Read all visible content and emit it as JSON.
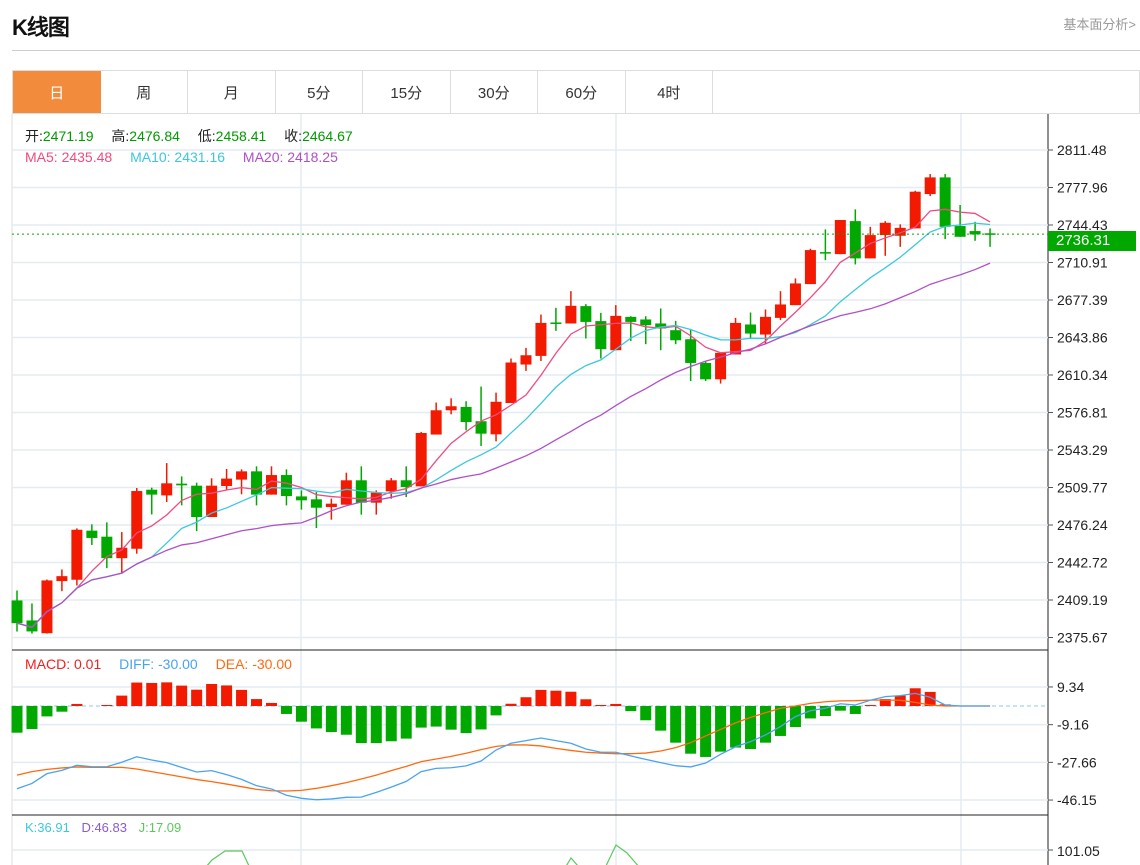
{
  "header": {
    "title": "K线图",
    "fundamental_link": "基本面分析>"
  },
  "tabs": [
    {
      "label": "日",
      "active": true
    },
    {
      "label": "周"
    },
    {
      "label": "月"
    },
    {
      "label": "5分"
    },
    {
      "label": "15分"
    },
    {
      "label": "30分"
    },
    {
      "label": "60分"
    },
    {
      "label": "4时"
    }
  ],
  "ohlc_legend": {
    "open_label": "开:",
    "open": "2471.19",
    "high_label": "高:",
    "high": "2476.84",
    "low_label": "低:",
    "low": "2458.41",
    "close_label": "收:",
    "close": "2464.67"
  },
  "ma_legend": {
    "ma5": "MA5: 2435.48",
    "ma10": "MA10: 2431.16",
    "ma20": "MA20: 2418.25"
  },
  "macd_legend": {
    "macd": "MACD: 0.01",
    "diff": "DIFF: -30.00",
    "dea": "DEA: -30.00"
  },
  "kdj_legend": {
    "k": "K:36.91",
    "d": "D:46.83",
    "j": "J:17.09"
  },
  "current_price": "2736.31",
  "colors": {
    "up": "#f21a00",
    "down": "#00a800",
    "ma5": "#ee4b82",
    "ma10": "#3cc8dc",
    "ma20": "#b050c8",
    "diff": "#4aa3f0",
    "dea": "#ff6a10",
    "accent": "#f28c3c"
  },
  "chart_data": [
    {
      "type": "candlestick",
      "ylim": [
        2375.67,
        2811.48
      ],
      "y_ticks": [
        "2811.48",
        "2777.96",
        "2744.43",
        "2710.91",
        "2677.39",
        "2643.86",
        "2610.34",
        "2576.81",
        "2543.29",
        "2509.77",
        "2476.24",
        "2442.72",
        "2409.19",
        "2375.67"
      ],
      "grid": true,
      "series_ma": [
        "MA5",
        "MA10",
        "MA20"
      ],
      "ohlc": [
        [
          2408.8,
          2417.7,
          2381.0,
          2388.5
        ],
        [
          2390.9,
          2406.1,
          2379.2,
          2381.1
        ],
        [
          2379.5,
          2427.5,
          2379.2,
          2426.7
        ],
        [
          2426.1,
          2436.5,
          2417.1,
          2430.5
        ],
        [
          2427.3,
          2473.2,
          2422.2,
          2472.0
        ],
        [
          2471.19,
          2476.84,
          2458.41,
          2464.67
        ],
        [
          2465.8,
          2478.6,
          2437.7,
          2446.6
        ],
        [
          2446.6,
          2469.9,
          2432.7,
          2455.9
        ],
        [
          2455.0,
          2509.3,
          2450.6,
          2506.6
        ],
        [
          2507.8,
          2509.6,
          2485.7,
          2503.4
        ],
        [
          2502.7,
          2531.6,
          2496.8,
          2513.5
        ],
        [
          2513.2,
          2519.7,
          2493.8,
          2511.7
        ],
        [
          2511.4,
          2514.1,
          2470.8,
          2483.4
        ],
        [
          2483.4,
          2518.0,
          2483.4,
          2511.4
        ],
        [
          2511.1,
          2526.3,
          2507.8,
          2517.7
        ],
        [
          2516.8,
          2526.0,
          2503.7,
          2524.2
        ],
        [
          2524.2,
          2528.7,
          2493.8,
          2503.4
        ],
        [
          2503.4,
          2528.7,
          2503.4,
          2520.9
        ],
        [
          2520.9,
          2526.0,
          2493.8,
          2502.1
        ],
        [
          2501.8,
          2507.2,
          2490.0,
          2498.3
        ],
        [
          2499.2,
          2505.7,
          2473.5,
          2491.7
        ],
        [
          2492.3,
          2499.8,
          2481.0,
          2495.3
        ],
        [
          2494.4,
          2523.0,
          2494.4,
          2516.2
        ],
        [
          2516.2,
          2528.7,
          2485.5,
          2496.2
        ],
        [
          2496.2,
          2507.2,
          2485.5,
          2505.1
        ],
        [
          2506.3,
          2518.2,
          2499.8,
          2516.2
        ],
        [
          2516.2,
          2528.7,
          2501.2,
          2510.2
        ],
        [
          2510.8,
          2559.4,
          2510.8,
          2558.5
        ],
        [
          2557.1,
          2585.7,
          2557.1,
          2578.8
        ],
        [
          2578.8,
          2589.5,
          2575.2,
          2582.4
        ],
        [
          2581.8,
          2586.9,
          2560.9,
          2568.3
        ],
        [
          2569.0,
          2600.0,
          2546.9,
          2557.9
        ],
        [
          2557.3,
          2594.6,
          2551.0,
          2586.4
        ],
        [
          2585.3,
          2625.1,
          2585.3,
          2621.5
        ],
        [
          2619.7,
          2634.6,
          2614.0,
          2628.0
        ],
        [
          2627.4,
          2664.4,
          2622.9,
          2656.9
        ],
        [
          2657.3,
          2670.4,
          2649.8,
          2656.0
        ],
        [
          2656.4,
          2685.3,
          2656.4,
          2672.2
        ],
        [
          2671.9,
          2673.7,
          2643.0,
          2657.8
        ],
        [
          2658.5,
          2665.9,
          2625.1,
          2633.4
        ],
        [
          2632.5,
          2672.8,
          2632.5,
          2663.2
        ],
        [
          2662.3,
          2662.9,
          2640.8,
          2657.8
        ],
        [
          2660.0,
          2662.9,
          2637.9,
          2654.9
        ],
        [
          2656.4,
          2669.8,
          2632.5,
          2651.9
        ],
        [
          2650.4,
          2658.7,
          2637.9,
          2641.4
        ],
        [
          2642.3,
          2651.0,
          2605.0,
          2621.1
        ],
        [
          2621.1,
          2622.7,
          2605.0,
          2606.5
        ],
        [
          2606.5,
          2630.1,
          2602.7,
          2630.1
        ],
        [
          2628.7,
          2661.4,
          2628.7,
          2656.9
        ],
        [
          2655.5,
          2666.2,
          2643.0,
          2647.4
        ],
        [
          2646.5,
          2668.9,
          2638.5,
          2662.3
        ],
        [
          2661.4,
          2685.3,
          2659.4,
          2673.4
        ],
        [
          2672.8,
          2696.7,
          2672.8,
          2692.2
        ],
        [
          2691.6,
          2723.2,
          2691.6,
          2722.0
        ],
        [
          2720.2,
          2740.5,
          2713.0,
          2719.0
        ],
        [
          2718.4,
          2748.9,
          2718.4,
          2748.9
        ],
        [
          2747.9,
          2758.4,
          2709.2,
          2714.6
        ],
        [
          2714.6,
          2742.8,
          2714.6,
          2735.4
        ],
        [
          2735.4,
          2747.9,
          2716.9,
          2746.4
        ],
        [
          2734.8,
          2745.0,
          2724.9,
          2741.9
        ],
        [
          2741.4,
          2775.0,
          2741.4,
          2774.2
        ],
        [
          2772.1,
          2790.0,
          2770.3,
          2787.0
        ],
        [
          2787.0,
          2790.0,
          2731.8,
          2742.8
        ],
        [
          2743.5,
          2762.3,
          2733.9,
          2733.9
        ],
        [
          2739.0,
          2747.3,
          2730.3,
          2736.0
        ],
        [
          2737.0,
          2741.4,
          2724.9,
          2736.31
        ]
      ]
    },
    {
      "type": "bar+line",
      "name": "MACD",
      "ylim": [
        -50,
        14
      ],
      "y_ticks": [
        "9.34",
        "-9.16",
        "-27.66",
        "-46.15"
      ],
      "macd": [
        -13.1,
        -11.3,
        -5.1,
        -2.8,
        1.0,
        0.0,
        0.5,
        5.1,
        11.5,
        11.3,
        11.6,
        10.0,
        8.0,
        10.8,
        10.1,
        7.9,
        3.4,
        1.5,
        -3.9,
        -7.7,
        -11.0,
        -12.8,
        -14.1,
        -18.2,
        -18.2,
        -17.3,
        -16.0,
        -10.6,
        -10.1,
        -11.6,
        -13.3,
        -11.5,
        -4.6,
        1.1,
        4.3,
        7.9,
        7.5,
        7.0,
        3.3,
        0.5,
        1.0,
        -2.5,
        -7.0,
        -12.1,
        -18.0,
        -23.4,
        -25.0,
        -22.4,
        -20.4,
        -21.1,
        -18.0,
        -14.7,
        -10.3,
        -6.1,
        -4.9,
        -2.3,
        -3.9,
        0.5,
        3.4,
        5.1,
        8.7,
        6.9,
        0.8,
        0.01,
        0.01,
        0.01
      ],
      "diff": [
        -40.6,
        -38.0,
        -33.2,
        -31.6,
        -29.1,
        -29.8,
        -29.8,
        -27.6,
        -24.9,
        -26.5,
        -27.8,
        -30.1,
        -32.4,
        -31.7,
        -33.7,
        -36.0,
        -39.1,
        -40.7,
        -43.8,
        -45.3,
        -46.0,
        -45.6,
        -44.8,
        -44.7,
        -42.4,
        -39.8,
        -37.0,
        -32.2,
        -30.6,
        -30.3,
        -29.4,
        -27.0,
        -21.6,
        -18.3,
        -17.0,
        -15.7,
        -17.0,
        -18.3,
        -21.1,
        -22.7,
        -22.7,
        -24.5,
        -26.2,
        -27.8,
        -29.3,
        -29.9,
        -28.0,
        -23.7,
        -20.0,
        -17.5,
        -14.2,
        -10.1,
        -5.2,
        -2.3,
        -1.1,
        1.1,
        0.5,
        2.8,
        4.6,
        5.1,
        6.2,
        4.3,
        0.5,
        0,
        0,
        0
      ],
      "dea": [
        -33.9,
        -32.2,
        -31.1,
        -30.4,
        -29.9,
        -30.1,
        -30.1,
        -30.1,
        -30.9,
        -32.2,
        -33.5,
        -34.8,
        -36.1,
        -37.1,
        -38.3,
        -39.6,
        -40.9,
        -41.6,
        -41.7,
        -41.4,
        -40.4,
        -39.1,
        -37.6,
        -35.8,
        -33.9,
        -31.7,
        -29.6,
        -27.3,
        -26.0,
        -24.7,
        -23.2,
        -21.4,
        -19.8,
        -19.1,
        -19.1,
        -19.6,
        -20.8,
        -21.8,
        -22.7,
        -23.1,
        -23.4,
        -23.4,
        -23.1,
        -22.1,
        -20.4,
        -18.0,
        -14.7,
        -11.5,
        -8.3,
        -5.6,
        -3.3,
        -1.1,
        0,
        1.3,
        2.1,
        2.5,
        2.6,
        2.9,
        2.9,
        2.8,
        1.8,
        0.5,
        0,
        0,
        0,
        0
      ]
    },
    {
      "type": "line",
      "name": "KDJ",
      "y_ticks": [
        "101.05"
      ]
    }
  ]
}
